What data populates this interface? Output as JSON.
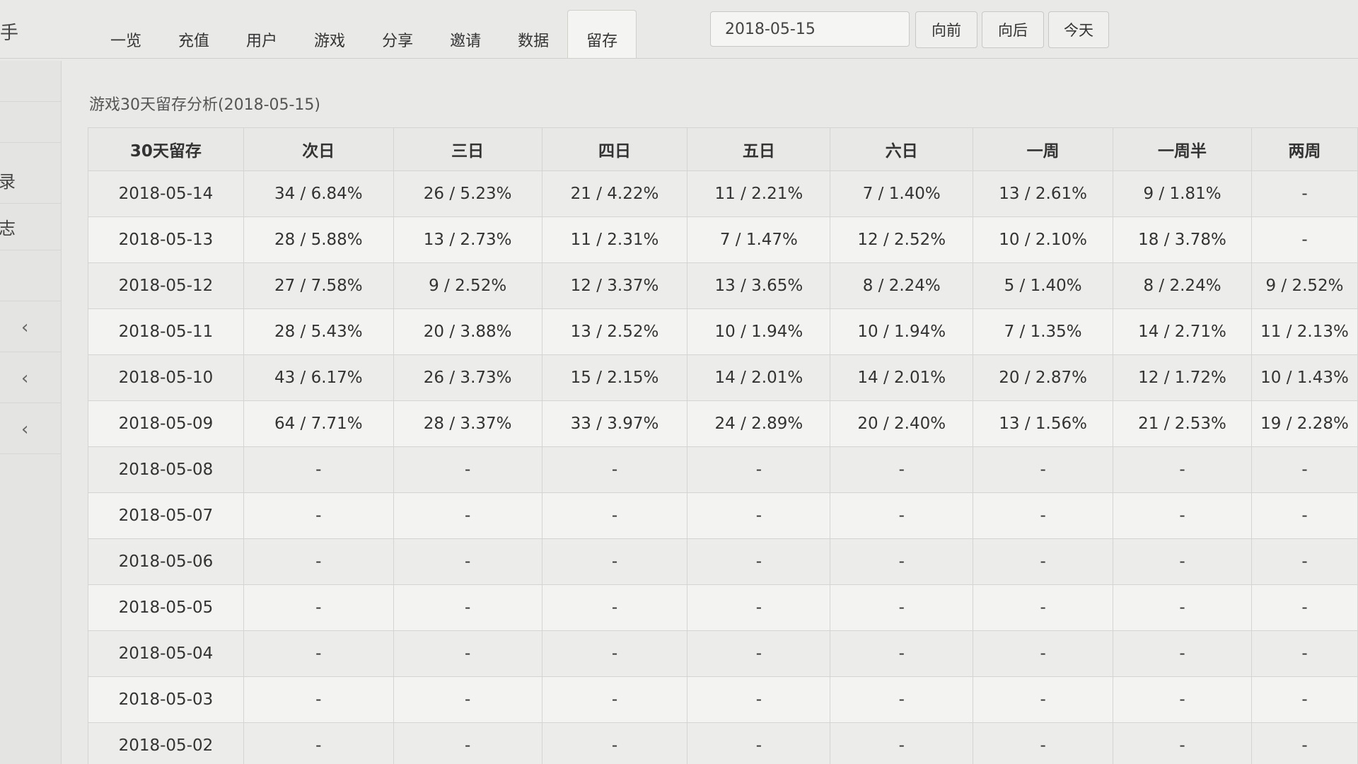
{
  "brand": "手",
  "nav": {
    "tabs": [
      {
        "label": "一览"
      },
      {
        "label": "充值"
      },
      {
        "label": "用户"
      },
      {
        "label": "游戏"
      },
      {
        "label": "分享"
      },
      {
        "label": "邀请"
      },
      {
        "label": "数据"
      },
      {
        "label": "留存",
        "active": true
      }
    ],
    "date_value": "2018-05-15",
    "prev_label": "向前",
    "next_label": "向后",
    "today_label": "今天"
  },
  "sidebar": {
    "items": [
      {
        "label": "录"
      },
      {
        "label": "志"
      }
    ],
    "chevron": "‹"
  },
  "main": {
    "title": "游戏30天留存分析(2018-05-15)",
    "table": {
      "headers": [
        "30天留存",
        "次日",
        "三日",
        "四日",
        "五日",
        "六日",
        "一周",
        "一周半",
        "两周"
      ],
      "rows": [
        [
          "2018-05-14",
          "34 / 6.84%",
          "26 / 5.23%",
          "21 / 4.22%",
          "11 / 2.21%",
          "7 / 1.40%",
          "13 / 2.61%",
          "9 / 1.81%",
          "-"
        ],
        [
          "2018-05-13",
          "28 / 5.88%",
          "13 / 2.73%",
          "11 / 2.31%",
          "7 / 1.47%",
          "12 / 2.52%",
          "10 / 2.10%",
          "18 / 3.78%",
          "-"
        ],
        [
          "2018-05-12",
          "27 / 7.58%",
          "9 / 2.52%",
          "12 / 3.37%",
          "13 / 3.65%",
          "8 / 2.24%",
          "5 / 1.40%",
          "8 / 2.24%",
          "9 / 2.52%"
        ],
        [
          "2018-05-11",
          "28 / 5.43%",
          "20 / 3.88%",
          "13 / 2.52%",
          "10 / 1.94%",
          "10 / 1.94%",
          "7 / 1.35%",
          "14 / 2.71%",
          "11 / 2.13%"
        ],
        [
          "2018-05-10",
          "43 / 6.17%",
          "26 / 3.73%",
          "15 / 2.15%",
          "14 / 2.01%",
          "14 / 2.01%",
          "20 / 2.87%",
          "12 / 1.72%",
          "10 / 1.43%"
        ],
        [
          "2018-05-09",
          "64 / 7.71%",
          "28 / 3.37%",
          "33 / 3.97%",
          "24 / 2.89%",
          "20 / 2.40%",
          "13 / 1.56%",
          "21 / 2.53%",
          "19 / 2.28%"
        ],
        [
          "2018-05-08",
          "-",
          "-",
          "-",
          "-",
          "-",
          "-",
          "-",
          "-"
        ],
        [
          "2018-05-07",
          "-",
          "-",
          "-",
          "-",
          "-",
          "-",
          "-",
          "-"
        ],
        [
          "2018-05-06",
          "-",
          "-",
          "-",
          "-",
          "-",
          "-",
          "-",
          "-"
        ],
        [
          "2018-05-05",
          "-",
          "-",
          "-",
          "-",
          "-",
          "-",
          "-",
          "-"
        ],
        [
          "2018-05-04",
          "-",
          "-",
          "-",
          "-",
          "-",
          "-",
          "-",
          "-"
        ],
        [
          "2018-05-03",
          "-",
          "-",
          "-",
          "-",
          "-",
          "-",
          "-",
          "-"
        ],
        [
          "2018-05-02",
          "-",
          "-",
          "-",
          "-",
          "-",
          "-",
          "-",
          "-"
        ]
      ]
    }
  }
}
